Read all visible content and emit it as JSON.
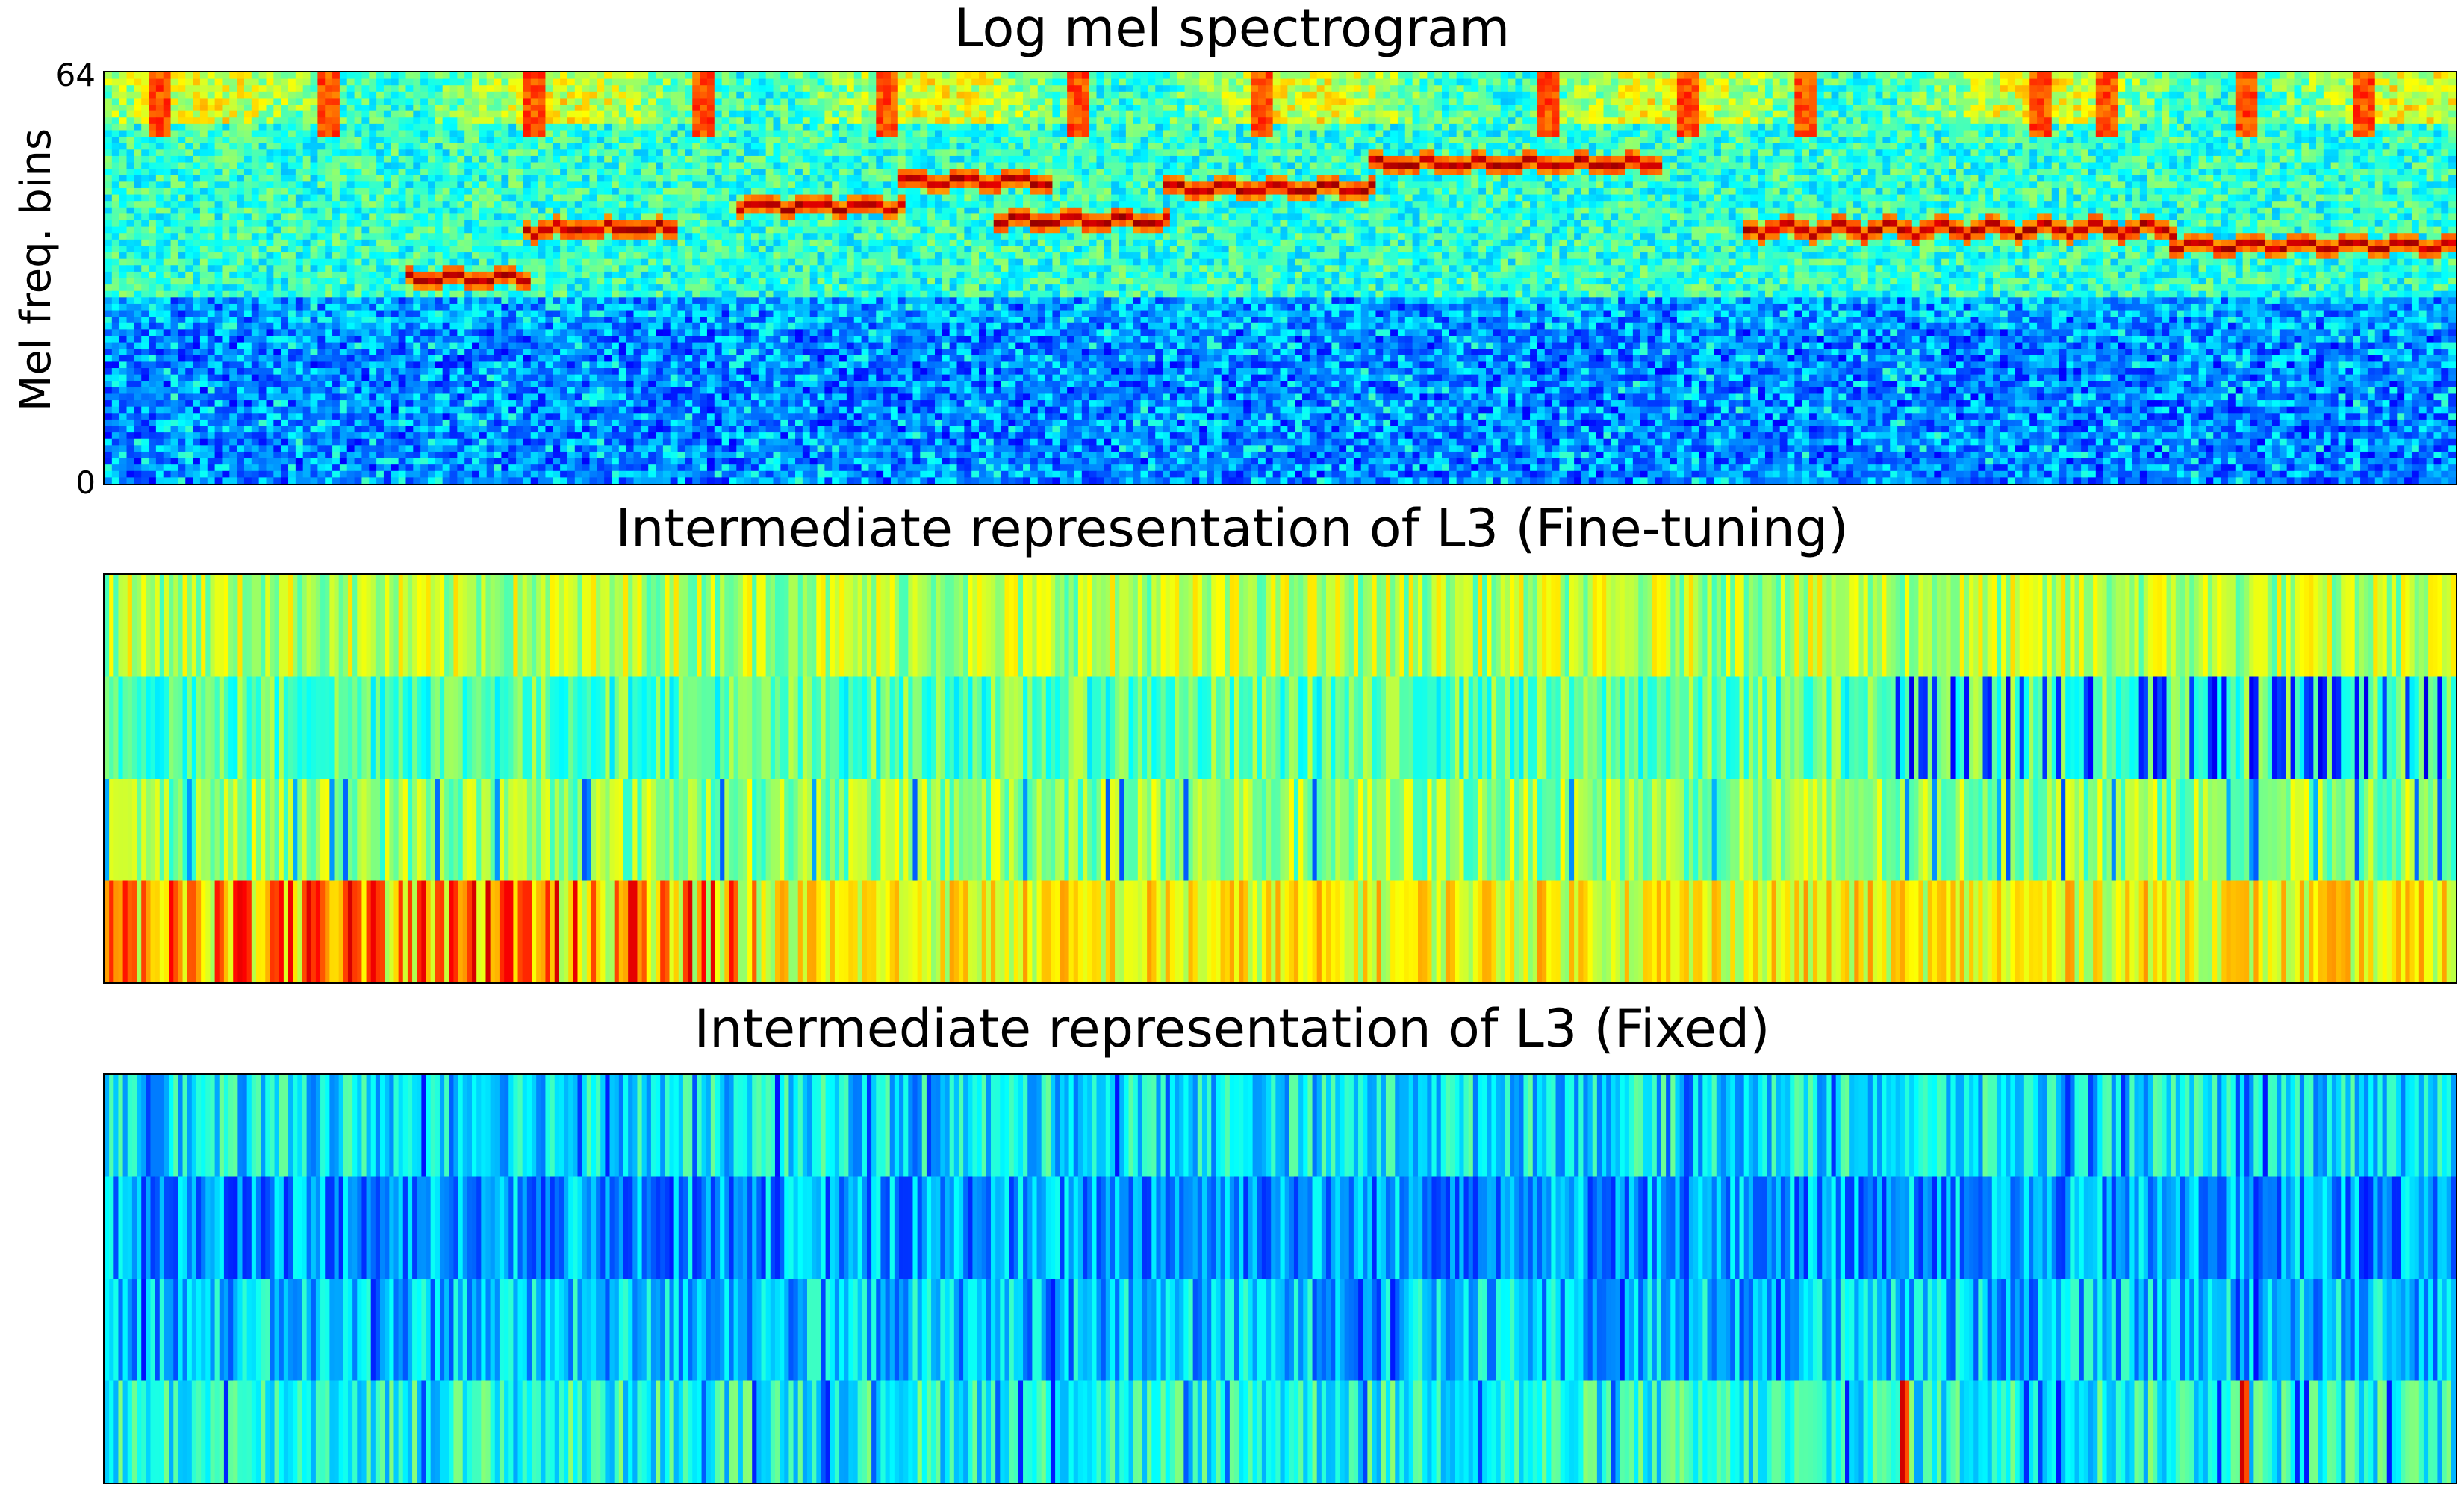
{
  "chart_data": [
    {
      "type": "heatmap",
      "title": "Log mel spectrogram",
      "ylabel": "Mel freq. bins",
      "xlabel": "",
      "yticks": [
        "0",
        "64"
      ],
      "ylim": [
        0,
        64
      ],
      "colormap": "jet",
      "rows": 64,
      "columns": 320,
      "bands": [
        {
          "name": "harmonic",
          "segments": [
            [
              0.13,
              0.18,
              0.5
            ],
            [
              0.18,
              0.24,
              0.62
            ],
            [
              0.27,
              0.34,
              0.68
            ],
            [
              0.34,
              0.4,
              0.74
            ],
            [
              0.38,
              0.45,
              0.64
            ],
            [
              0.45,
              0.54,
              0.72
            ],
            [
              0.54,
              0.66,
              0.78
            ],
            [
              0.7,
              0.88,
              0.62
            ],
            [
              0.88,
              1.0,
              0.58
            ]
          ]
        },
        {
          "name": "low",
          "segments": [
            [
              0.0,
              1.0,
              0.2
            ]
          ]
        }
      ]
    },
    {
      "type": "heatmap",
      "title": "Intermediate representation of L3 (Fine-tuning)",
      "colormap": "jet",
      "rows": 4,
      "columns": 512
    },
    {
      "type": "heatmap",
      "title": "Intermediate representation of L3 (Fixed)",
      "colormap": "jet",
      "rows": 4,
      "columns": 512
    }
  ]
}
